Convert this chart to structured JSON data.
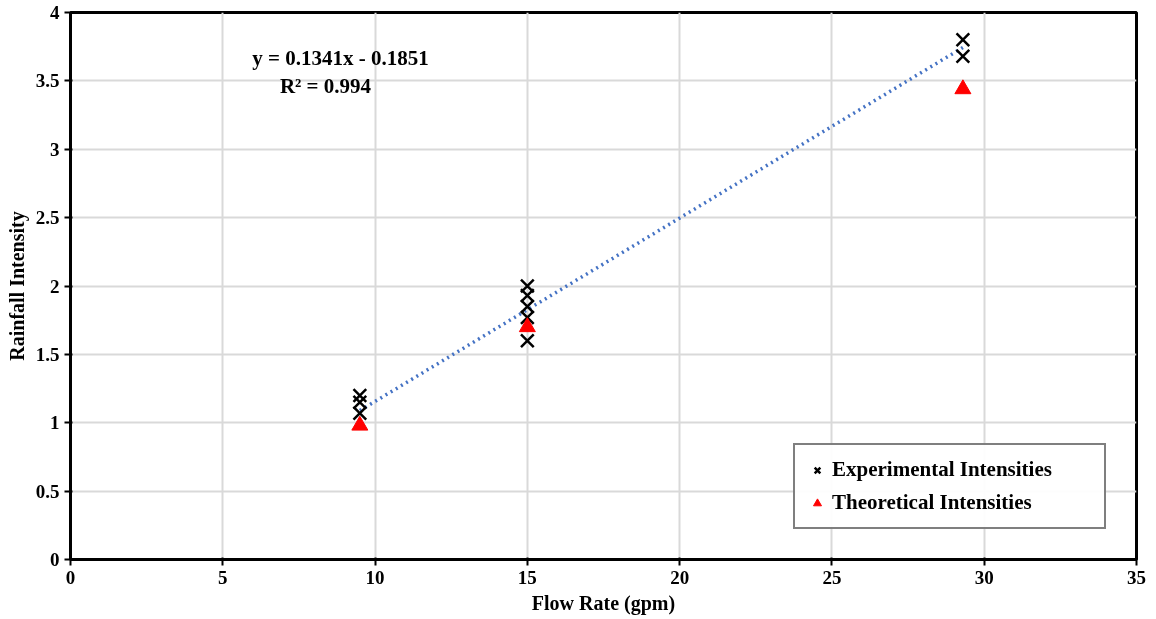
{
  "chart_data": {
    "type": "scatter",
    "xlabel": "Flow Rate (gpm)",
    "ylabel": "Rainfall Intensity",
    "xlim": [
      0,
      35
    ],
    "xticks": [
      0,
      5,
      10,
      15,
      20,
      25,
      30,
      35
    ],
    "ylim": [
      0,
      4
    ],
    "yticks": [
      0,
      0.5,
      1,
      1.5,
      2,
      2.5,
      3,
      3.5,
      4
    ],
    "grid": true,
    "legend": "bottom right",
    "annotations": [
      "y = 0.1341x - 0.1851",
      "R² = 0.994"
    ],
    "series": [
      {
        "name": "Experimental Intensities",
        "marker": "cross",
        "color": "#000000",
        "x": [
          9.5,
          9.5,
          9.5,
          15,
          15,
          15,
          15,
          15,
          29.3,
          29.3
        ],
        "values": [
          1.2,
          1.15,
          1.07,
          2.0,
          1.93,
          1.85,
          1.77,
          1.6,
          3.8,
          3.68
        ]
      },
      {
        "name": "Theoretical Intensities",
        "marker": "triangle",
        "color": "#ff0000",
        "x": [
          9.5,
          15,
          29.3
        ],
        "values": [
          0.98,
          1.7,
          3.44
        ]
      },
      {
        "type": "line",
        "marker": "none",
        "line_style": "dotted",
        "color": "#4472c4",
        "x": [
          9.5,
          29.3
        ],
        "values": [
          1.089,
          3.744
        ]
      }
    ]
  }
}
